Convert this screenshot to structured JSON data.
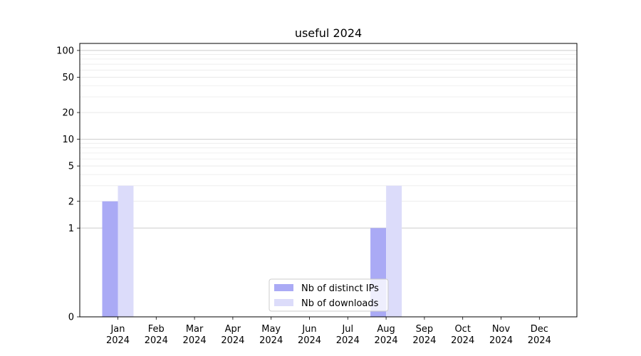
{
  "chart_data": {
    "type": "bar",
    "title": "useful 2024",
    "xlabel": "",
    "ylabel": "",
    "y_scale": "symlog",
    "ylim": [
      0,
      120
    ],
    "y_ticks": [
      {
        "value": 0,
        "label": "0"
      },
      {
        "value": 1,
        "label": "1"
      },
      {
        "value": 2,
        "label": "2"
      },
      {
        "value": 5,
        "label": "5"
      },
      {
        "value": 10,
        "label": "10"
      },
      {
        "value": 20,
        "label": "20"
      },
      {
        "value": 50,
        "label": "50"
      },
      {
        "value": 100,
        "label": "100"
      }
    ],
    "categories": [
      {
        "month": "Jan",
        "year": "2024"
      },
      {
        "month": "Feb",
        "year": "2024"
      },
      {
        "month": "Mar",
        "year": "2024"
      },
      {
        "month": "Apr",
        "year": "2024"
      },
      {
        "month": "May",
        "year": "2024"
      },
      {
        "month": "Jun",
        "year": "2024"
      },
      {
        "month": "Jul",
        "year": "2024"
      },
      {
        "month": "Aug",
        "year": "2024"
      },
      {
        "month": "Sep",
        "year": "2024"
      },
      {
        "month": "Oct",
        "year": "2024"
      },
      {
        "month": "Nov",
        "year": "2024"
      },
      {
        "month": "Dec",
        "year": "2024"
      }
    ],
    "series": [
      {
        "name": "Nb of distinct IPs",
        "color": "#aaaaf5",
        "values": [
          2,
          0,
          0,
          0,
          0,
          0,
          0,
          1,
          0,
          0,
          0,
          0
        ]
      },
      {
        "name": "Nb of downloads",
        "color": "#dcdcfa",
        "values": [
          3,
          0,
          0,
          0,
          0,
          0,
          0,
          3,
          0,
          0,
          0,
          0
        ]
      }
    ],
    "legend_position": "bottom-center",
    "grid": true
  }
}
